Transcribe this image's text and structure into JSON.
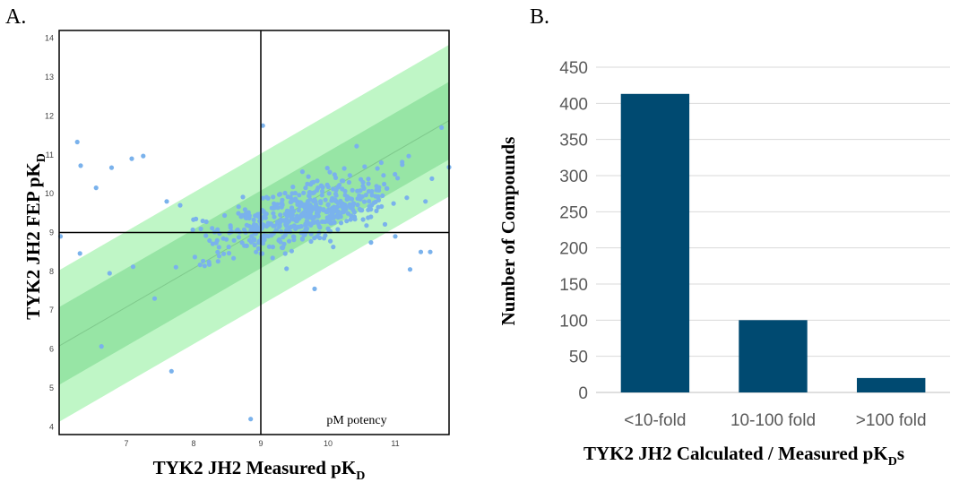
{
  "panel_a": {
    "panel_label": "A.",
    "quadrant_label": "pM potency",
    "chart_data": {
      "type": "scatter",
      "xlabel": "TYK2 JH2 Measured pK",
      "xlabel_sub": "D",
      "ylabel": "TYK2 JH2 FEP pK",
      "ylabel_sub": "D",
      "xlim": [
        6.0,
        11.8
      ],
      "ylim": [
        3.8,
        14.2
      ],
      "x_ticks": [
        7,
        8,
        9,
        10,
        11
      ],
      "y_ticks": [
        4,
        5,
        6,
        7,
        8,
        9,
        10,
        11,
        12,
        13,
        14
      ],
      "reference_line": {
        "intercept": 0.08,
        "slope": 1.0,
        "xrange": [
          6.0,
          11.8
        ]
      },
      "bands": [
        {
          "name": "outer band",
          "half_width": 1.95,
          "color": "#b4f4bc"
        },
        {
          "name": "inner band",
          "half_width": 1.0,
          "color": "#8fe29f"
        }
      ],
      "quadrant_lines": {
        "x": 9.0,
        "y": 9.0
      },
      "point_color": "#7ab2ec",
      "outliers": [
        [
          6.27,
          11.33
        ],
        [
          6.32,
          10.72
        ],
        [
          6.55,
          10.15
        ],
        [
          6.78,
          10.67
        ],
        [
          7.08,
          10.9
        ],
        [
          7.25,
          10.97
        ],
        [
          6.02,
          8.9
        ],
        [
          6.31,
          8.46
        ],
        [
          6.75,
          7.95
        ],
        [
          7.1,
          8.12
        ],
        [
          7.42,
          7.3
        ],
        [
          7.67,
          5.43
        ],
        [
          6.63,
          6.07
        ],
        [
          8.85,
          4.2
        ],
        [
          9.03,
          11.75
        ],
        [
          11.22,
          8.05
        ],
        [
          11.38,
          8.5
        ],
        [
          11.52,
          8.5
        ],
        [
          11.69,
          11.7
        ],
        [
          11.8,
          10.68
        ],
        [
          7.6,
          9.8
        ],
        [
          7.8,
          9.7
        ],
        [
          9.8,
          7.55
        ],
        [
          11.0,
          8.9
        ],
        [
          11.45,
          9.8
        ]
      ],
      "cluster": {
        "count": 520,
        "x_mean": 9.6,
        "x_sd": 0.62,
        "y_mean": 9.45,
        "y_sd": 0.5,
        "correlation": 0.58,
        "seed": 7
      }
    }
  },
  "panel_b": {
    "panel_label": "B.",
    "chart_data": {
      "type": "bar",
      "categories": [
        "<10-fold",
        "10-100 fold",
        ">100 fold"
      ],
      "values": [
        413,
        100,
        20
      ],
      "ylabel": "Number of Compounds",
      "xlabel": "TYK2 JH2 Calculated / Measured pK",
      "xlabel_sub": "D",
      "xlabel_suffix": "s",
      "ylim": [
        0,
        450
      ],
      "y_ticks": [
        0,
        50,
        100,
        150,
        200,
        250,
        300,
        350,
        400,
        450
      ],
      "bar_color": "#004a71",
      "gridlines": true
    }
  }
}
